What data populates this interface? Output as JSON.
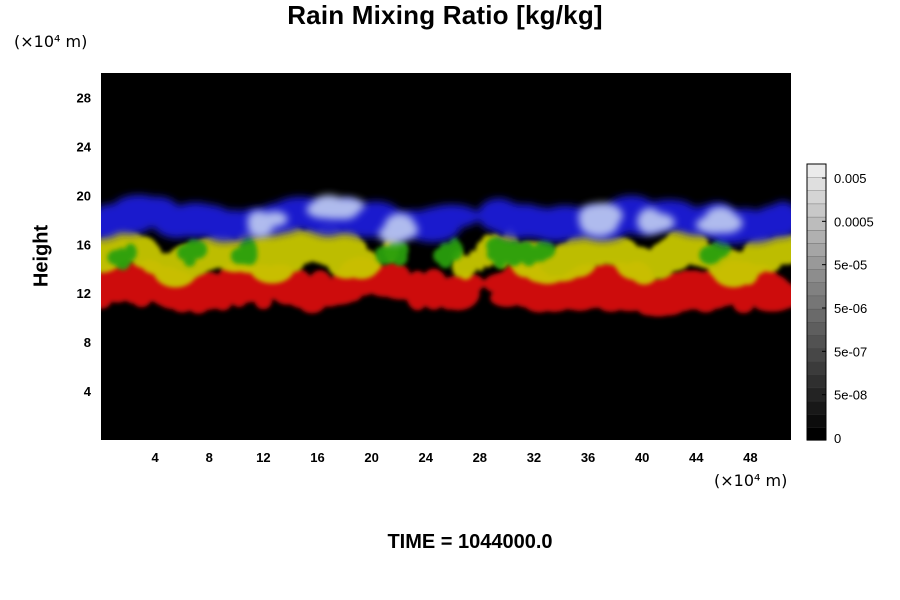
{
  "chart_data": {
    "type": "heatmap",
    "title": "Rain Mixing Ratio [kg/kg]",
    "ylabel": "Height",
    "xlabel": "",
    "x_unit": "(×10⁴ m)",
    "y_unit": "(×10⁴ m)",
    "xlim": [
      0,
      51
    ],
    "ylim": [
      0,
      30
    ],
    "x_ticks": [
      4,
      8,
      12,
      16,
      20,
      24,
      28,
      32,
      36,
      40,
      44,
      48
    ],
    "y_ticks": [
      4,
      8,
      12,
      16,
      20,
      24,
      28
    ],
    "colorbar": {
      "labels": [
        "0.005",
        "0.0005",
        "5e-05",
        "5e-06",
        "5e-07",
        "5e-08",
        "0"
      ],
      "levels": 21
    },
    "layers": [
      {
        "color": "#1a1ae0",
        "description_height_range": [
          17,
          19.5
        ]
      },
      {
        "color": "#d8d800",
        "description_height_range": [
          14,
          17
        ]
      },
      {
        "color": "#e01010",
        "description_height_range": [
          11,
          14
        ]
      }
    ],
    "background": "#000000",
    "annotation": "TIME = 1044000.0"
  }
}
